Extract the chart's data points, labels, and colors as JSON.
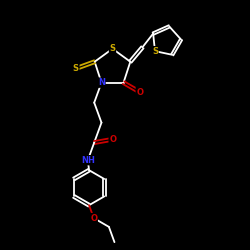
{
  "background_color": "#000000",
  "bond_color": "#ffffff",
  "atom_colors": {
    "S": "#ccaa00",
    "N": "#3333ff",
    "O": "#cc0000",
    "C": "#ffffff",
    "H": "#ffffff"
  },
  "figsize": [
    2.5,
    2.5
  ],
  "dpi": 100,
  "xlim": [
    0,
    10
  ],
  "ylim": [
    0,
    10
  ]
}
